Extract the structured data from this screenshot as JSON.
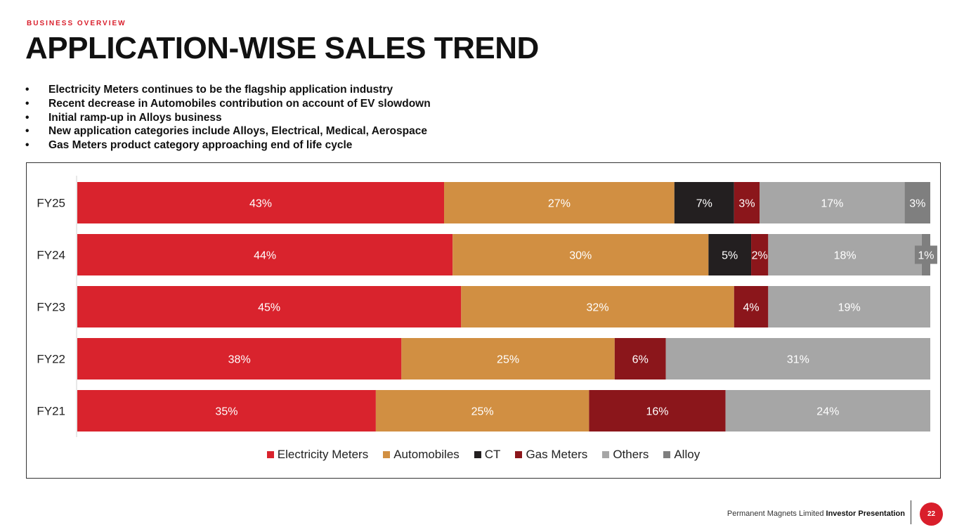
{
  "header": {
    "eyebrow": "BUSINESS OVERVIEW",
    "title": "APPLICATION-WISE SALES TREND"
  },
  "bullets": [
    "Electricity Meters continues to be the flagship application industry",
    "Recent decrease in Automobiles contribution on account of EV slowdown",
    "Initial ramp-up in Alloys business",
    "New application categories include Alloys, Electrical, Medical, Aerospace",
    "Gas Meters product category approaching end of life cycle"
  ],
  "colors": {
    "brand_red": "#d91e2b",
    "electricity_meters": "#d9232d",
    "automobiles": "#d18f42",
    "ct": "#231f20",
    "gas_meters": "#8b161b",
    "others": "#a6a6a6",
    "alloy": "#7f7f7f"
  },
  "chart_data": {
    "type": "bar",
    "orientation": "horizontal",
    "stacked": true,
    "percent_stacked": true,
    "categories": [
      "FY25",
      "FY24",
      "FY23",
      "FY22",
      "FY21"
    ],
    "series": [
      {
        "name": "Electricity Meters",
        "color": "#d9232d",
        "values": [
          43,
          44,
          45,
          38,
          35
        ],
        "labels": [
          "43%",
          "44%",
          "45%",
          "38%",
          "35%"
        ]
      },
      {
        "name": "Automobiles",
        "color": "#d18f42",
        "values": [
          27,
          30,
          32,
          25,
          25
        ],
        "labels": [
          "27%",
          "30%",
          "32%",
          "25%",
          "25%"
        ]
      },
      {
        "name": "CT",
        "color": "#231f20",
        "values": [
          7,
          5,
          0,
          0,
          0
        ],
        "labels": [
          "7%",
          "5%",
          "",
          "",
          ""
        ]
      },
      {
        "name": "Gas Meters",
        "color": "#8b161b",
        "values": [
          3,
          2,
          4,
          6,
          16
        ],
        "labels": [
          "3%",
          "2%",
          "4%",
          "6%",
          "16%"
        ]
      },
      {
        "name": "Others",
        "color": "#a6a6a6",
        "values": [
          17,
          18,
          19,
          31,
          24
        ],
        "labels": [
          "17%",
          "18%",
          "19%",
          "31%",
          "24%"
        ]
      },
      {
        "name": "Alloy",
        "color": "#7f7f7f",
        "values": [
          3,
          1,
          0,
          0,
          0
        ],
        "labels": [
          "3%",
          "1%",
          "",
          "",
          ""
        ]
      }
    ],
    "xlim": [
      0,
      100
    ],
    "legend_position": "bottom",
    "grid": false
  },
  "footer": {
    "company": "Permanent Magnets Limited",
    "doc": "Investor Presentation",
    "page": "22"
  }
}
